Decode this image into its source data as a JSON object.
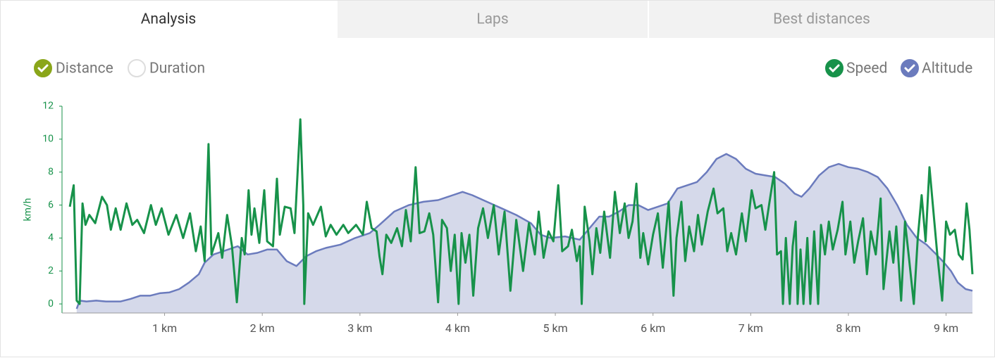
{
  "tabs": [
    {
      "label": "Analysis",
      "active": true
    },
    {
      "label": "Laps",
      "active": false
    },
    {
      "label": "Best distances",
      "active": false
    }
  ],
  "axis_toggles": [
    {
      "label": "Distance",
      "checked": true,
      "color": "#8aa61a"
    },
    {
      "label": "Duration",
      "checked": false,
      "color": "#8aa61a"
    }
  ],
  "chart_data": {
    "type": "line",
    "y_label": "km/h",
    "xlim": [
      -0.05,
      9.27
    ],
    "xticks": [
      {
        "value": 1,
        "label": "1 km"
      },
      {
        "value": 2,
        "label": "2 km"
      },
      {
        "value": 3,
        "label": "3 km"
      },
      {
        "value": 4,
        "label": "4 km"
      },
      {
        "value": 5,
        "label": "5 km"
      },
      {
        "value": 6,
        "label": "6 km"
      },
      {
        "value": 7,
        "label": "7 km"
      },
      {
        "value": 8,
        "label": "8 km"
      },
      {
        "value": 9,
        "label": "9 km"
      }
    ],
    "ylim": [
      -0.55,
      12
    ],
    "yticks": [
      0,
      2,
      4,
      6,
      8,
      10,
      12
    ],
    "grid": false,
    "series": [
      {
        "name": "Speed",
        "color": "#17924a",
        "checked": true,
        "x": [
          0.03,
          0.07,
          0.1,
          0.13,
          0.16,
          0.19,
          0.23,
          0.29,
          0.36,
          0.41,
          0.45,
          0.5,
          0.55,
          0.61,
          0.67,
          0.72,
          0.79,
          0.86,
          0.91,
          0.97,
          1.04,
          1.12,
          1.19,
          1.26,
          1.32,
          1.37,
          1.41,
          1.45,
          1.48,
          1.55,
          1.59,
          1.64,
          1.69,
          1.74,
          1.79,
          1.82,
          1.86,
          1.89,
          1.92,
          1.97,
          2.02,
          2.05,
          2.11,
          2.15,
          2.18,
          2.23,
          2.29,
          2.33,
          2.39,
          2.42,
          2.43,
          2.47,
          2.52,
          2.6,
          2.65,
          2.7,
          2.76,
          2.83,
          2.88,
          2.96,
          3.03,
          3.07,
          3.12,
          3.17,
          3.2,
          3.23,
          3.27,
          3.32,
          3.38,
          3.43,
          3.47,
          3.52,
          3.57,
          3.61,
          3.66,
          3.71,
          3.75,
          3.8,
          3.84,
          3.89,
          3.93,
          3.97,
          4.01,
          4.04,
          4.08,
          4.12,
          4.16,
          4.21,
          4.26,
          4.31,
          4.37,
          4.42,
          4.48,
          4.54,
          4.6,
          4.67,
          4.73,
          4.79,
          4.83,
          4.88,
          4.93,
          4.98,
          5.03,
          5.07,
          5.13,
          5.17,
          5.22,
          5.25,
          5.27,
          5.3,
          5.35,
          5.38,
          5.42,
          5.46,
          5.5,
          5.56,
          5.61,
          5.66,
          5.71,
          5.75,
          5.79,
          5.83,
          5.87,
          5.9,
          5.95,
          6.0,
          6.05,
          6.1,
          6.16,
          6.21,
          6.24,
          6.29,
          6.33,
          6.37,
          6.42,
          6.46,
          6.5,
          6.56,
          6.62,
          6.66,
          6.72,
          6.76,
          6.8,
          6.85,
          6.91,
          6.95,
          7.01,
          7.05,
          7.11,
          7.15,
          7.19,
          7.24,
          7.27,
          7.31,
          7.33,
          7.36,
          7.4,
          7.43,
          7.46,
          7.48,
          7.51,
          7.54,
          7.58,
          7.61,
          7.65,
          7.69,
          7.72,
          7.76,
          7.8,
          7.84,
          7.89,
          7.94,
          7.97,
          8.02,
          8.06,
          8.1,
          8.15,
          8.19,
          8.23,
          8.28,
          8.33,
          8.36,
          8.42,
          8.46,
          8.49,
          8.54,
          8.58,
          8.62,
          8.67,
          8.71,
          8.75,
          8.79,
          8.83,
          8.88,
          8.91,
          8.96,
          9.0,
          9.04,
          9.09,
          9.13,
          9.17,
          9.21,
          9.24,
          9.27
        ],
        "values": [
          5.9,
          7.2,
          0.2,
          0,
          6.1,
          4.8,
          5.4,
          4.9,
          6.5,
          6.0,
          4.5,
          5.8,
          4.5,
          6.1,
          4.8,
          5.1,
          4.3,
          6.0,
          4.8,
          5.8,
          4.2,
          5.4,
          4.0,
          5.5,
          3.2,
          4.7,
          2.6,
          9.7,
          3.0,
          4.3,
          2.8,
          5.4,
          3.5,
          0.1,
          4.0,
          3.0,
          6.9,
          4.2,
          5.8,
          3.7,
          6.9,
          3.8,
          3.5,
          7.6,
          4.2,
          5.9,
          5.8,
          4.3,
          11.2,
          6.0,
          0,
          5.5,
          4.8,
          5.9,
          4.1,
          4.8,
          4.2,
          4.8,
          4.3,
          4.8,
          4.2,
          6.2,
          4.6,
          4.4,
          2.9,
          1.8,
          4.2,
          3.7,
          4.6,
          3.5,
          5.7,
          3.8,
          8.3,
          4.3,
          4.4,
          5.5,
          4.2,
          0.1,
          5.1,
          4.6,
          2.0,
          4.2,
          0,
          4.3,
          2.5,
          4.2,
          0.5,
          4.6,
          5.8,
          4.0,
          6.0,
          3.0,
          5.6,
          0.8,
          5.1,
          2.0,
          4.9,
          3.0,
          5.6,
          2.8,
          4.4,
          3.8,
          7.2,
          3.2,
          3.5,
          4.5,
          2.6,
          3.5,
          0,
          5.9,
          3.8,
          1.8,
          4.6,
          3.1,
          5.6,
          2.8,
          6.8,
          4.3,
          6.1,
          4.0,
          5.0,
          7.3,
          2.8,
          4.3,
          2.4,
          4.2,
          5.5,
          2.2,
          6.2,
          0.5,
          4.0,
          6.2,
          2.6,
          4.7,
          3.2,
          5.4,
          3.6,
          5.6,
          7.0,
          5.5,
          5.8,
          3.2,
          4.3,
          3.0,
          5.5,
          3.8,
          6.9,
          5.8,
          6.0,
          4.5,
          6.1,
          8.0,
          3.0,
          3.2,
          0,
          4.0,
          0,
          3.5,
          5.0,
          0,
          3.3,
          0,
          4.0,
          0,
          4.4,
          0,
          4.8,
          3.0,
          5.0,
          3.3,
          4.5,
          6.2,
          3.0,
          5.0,
          2.5,
          3.8,
          5.2,
          1.8,
          4.4,
          3.0,
          6.4,
          0.9,
          4.4,
          2.5,
          4.7,
          0.2,
          5.0,
          2.8,
          0,
          4.0,
          6.6,
          3.8,
          8.3,
          5.0,
          3.0,
          0.2,
          5.0,
          4.2,
          4.5,
          3.0,
          2.7,
          6.1,
          4.5,
          1.8
        ]
      },
      {
        "name": "Altitude",
        "color": "#6b7bbd",
        "fill": "#d5d9ea",
        "checked": true,
        "x": [
          0.1,
          0.13,
          0.2,
          0.3,
          0.4,
          0.55,
          0.65,
          0.75,
          0.85,
          0.95,
          1.05,
          1.15,
          1.25,
          1.35,
          1.41,
          1.5,
          1.6,
          1.75,
          1.85,
          1.95,
          2.05,
          2.15,
          2.25,
          2.35,
          2.45,
          2.55,
          2.65,
          2.8,
          2.95,
          3.1,
          3.2,
          3.35,
          3.5,
          3.65,
          3.8,
          3.95,
          4.05,
          4.15,
          4.3,
          4.45,
          4.6,
          4.75,
          4.85,
          4.95,
          5.1,
          5.25,
          5.35,
          5.45,
          5.55,
          5.65,
          5.75,
          5.85,
          5.95,
          6.05,
          6.15,
          6.25,
          6.35,
          6.45,
          6.55,
          6.65,
          6.75,
          6.85,
          6.95,
          7.05,
          7.15,
          7.25,
          7.35,
          7.45,
          7.52,
          7.6,
          7.7,
          7.8,
          7.9,
          8.0,
          8.1,
          8.2,
          8.3,
          8.4,
          8.5,
          8.6,
          8.7,
          8.8,
          8.9,
          8.98,
          9.05,
          9.12,
          9.2,
          9.27
        ],
        "values": [
          -0.3,
          0.2,
          0.15,
          0.2,
          0.15,
          0.15,
          0.3,
          0.5,
          0.5,
          0.65,
          0.7,
          0.9,
          1.3,
          1.8,
          2.5,
          3.0,
          3.2,
          3.5,
          3.0,
          3.1,
          3.3,
          3.3,
          2.6,
          2.3,
          2.9,
          3.2,
          3.4,
          3.6,
          4.0,
          4.3,
          4.8,
          5.6,
          6.0,
          6.2,
          6.3,
          6.6,
          6.8,
          6.6,
          6.2,
          5.8,
          5.4,
          4.9,
          4.2,
          4.0,
          4.1,
          3.9,
          4.6,
          5.3,
          5.3,
          5.6,
          6.0,
          6.0,
          5.7,
          5.9,
          6.1,
          7.0,
          7.2,
          7.4,
          8.0,
          8.8,
          9.1,
          8.8,
          8.2,
          7.9,
          7.8,
          7.7,
          7.3,
          6.7,
          6.5,
          7.0,
          7.8,
          8.3,
          8.5,
          8.3,
          8.2,
          8.0,
          7.7,
          7.0,
          6.0,
          4.8,
          4.0,
          3.6,
          3.0,
          2.5,
          2.0,
          1.3,
          0.9,
          0.8
        ]
      }
    ]
  }
}
